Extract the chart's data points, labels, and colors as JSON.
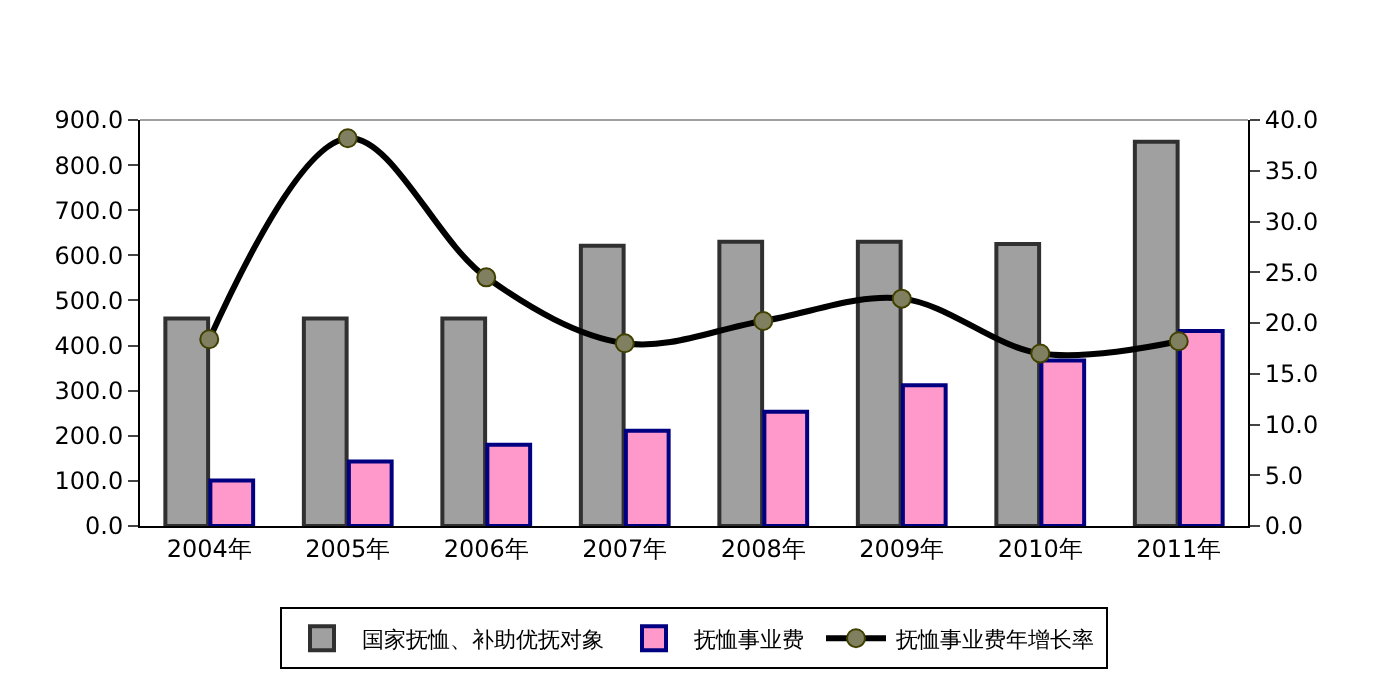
{
  "chart_data": {
    "type": "bar",
    "categories": [
      "2004年",
      "2005年",
      "2006年",
      "2007年",
      "2008年",
      "2009年",
      "2010年",
      "2011年"
    ],
    "series": [
      {
        "name": "国家抚恤、补助优抚对象",
        "color": "#a0a0a0",
        "values": [
          460,
          460,
          460,
          621,
          630,
          630,
          625,
          852
        ]
      },
      {
        "name": "抚恤事业费",
        "color": "#ff99cc",
        "values": [
          101,
          143,
          180,
          211,
          253,
          312,
          367,
          432
        ]
      },
      {
        "name": "抚恤事业费年增长率",
        "type": "line",
        "axis": "y2",
        "color": "#000000",
        "values": [
          18.4,
          38.2,
          24.5,
          18.0,
          20.2,
          22.4,
          17.0,
          18.2
        ]
      }
    ],
    "ylim": [
      0,
      900
    ],
    "yticks": [
      {
        "value": 0,
        "label": "0.0"
      },
      {
        "value": 100,
        "label": "100.0"
      },
      {
        "value": 200,
        "label": "200.0"
      },
      {
        "value": 300,
        "label": "300.0"
      },
      {
        "value": 400,
        "label": "400.0"
      },
      {
        "value": 500,
        "label": "500.0"
      },
      {
        "value": 600,
        "label": "600.0"
      },
      {
        "value": 700,
        "label": "700.0"
      },
      {
        "value": 800,
        "label": "800.0"
      },
      {
        "value": 900,
        "label": "900.0"
      }
    ],
    "y2lim": [
      0,
      40
    ],
    "y2ticks": [
      {
        "value": 0,
        "label": "0.0"
      },
      {
        "value": 5,
        "label": "5.0"
      },
      {
        "value": 10,
        "label": "10.0"
      },
      {
        "value": 15,
        "label": "15.0"
      },
      {
        "value": 20,
        "label": "20.0"
      },
      {
        "value": 25,
        "label": "25.0"
      },
      {
        "value": 30,
        "label": "30.0"
      },
      {
        "value": 35,
        "label": "35.0"
      },
      {
        "value": 40,
        "label": "40.0"
      }
    ],
    "legend": "bottom",
    "marker": "circle"
  }
}
